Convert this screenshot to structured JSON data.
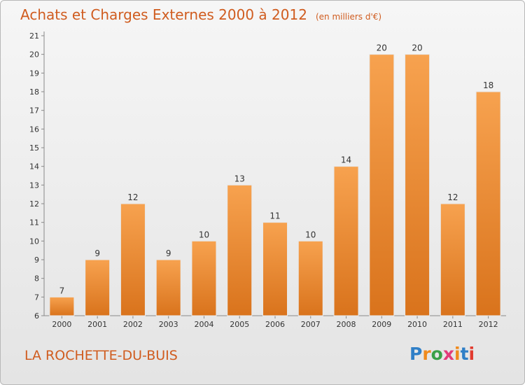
{
  "header": {
    "title": "Achats et Charges Externes 2000 à 2012",
    "unit": "(en milliers d'€)"
  },
  "footer": {
    "town": "LA ROCHETTE-DU-BUIS",
    "brand": "Proxiti"
  },
  "colors": {
    "accent": "#d05c1f",
    "bar_top": "#f7a24f",
    "bar_bottom": "#d9731c",
    "brand_letters": [
      "#2f7fc7",
      "#f08a1c",
      "#3aa048",
      "#e23b7a",
      "#f08a1c",
      "#2f7fc7",
      "#e23b2f"
    ]
  },
  "chart_data": {
    "type": "bar",
    "categories": [
      "2000",
      "2001",
      "2002",
      "2003",
      "2004",
      "2005",
      "2006",
      "2007",
      "2008",
      "2009",
      "2010",
      "2011",
      "2012"
    ],
    "values": [
      7,
      9,
      12,
      9,
      10,
      13,
      11,
      10,
      14,
      20,
      20,
      12,
      18
    ],
    "ylim": [
      6,
      21
    ],
    "yticks": [
      6,
      7,
      8,
      9,
      10,
      11,
      12,
      13,
      14,
      15,
      16,
      17,
      18,
      19,
      20,
      21
    ],
    "grid": false,
    "data_labels": true,
    "legend": false
  }
}
